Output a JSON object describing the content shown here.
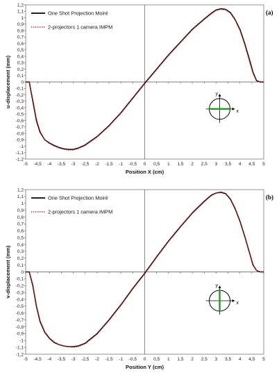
{
  "colors": {
    "series_solid": "#000000",
    "series_dotted": "#e0201b",
    "inset_line": "#1aa31a"
  },
  "chart_data": [
    {
      "type": "line",
      "panel_label": "(a)",
      "xlabel": "Position X (cm)",
      "ylabel": "u-displacement (mm)",
      "xlim": [
        -5,
        5
      ],
      "ylim": [
        -1.2,
        1.2
      ],
      "x_ticks": [
        "-5",
        "-4,5",
        "-4",
        "-3,5",
        "-3",
        "-2,5",
        "-2",
        "-1,5",
        "-1",
        "-0,5",
        "0",
        "0,5",
        "1",
        "1,5",
        "2",
        "2,5",
        "3",
        "3,5",
        "4",
        "4,5",
        "5"
      ],
      "y_ticks": [
        "1,2",
        "1,1",
        "1",
        "0,9",
        "0,8",
        "0,7",
        "0,6",
        "0,5",
        "0,4",
        "0,3",
        "0,2",
        "0,1",
        "0",
        "-0,1",
        "-0,2",
        "-0,3",
        "-0,4",
        "-0,5",
        "-0,6",
        "-0,7",
        "-0,8",
        "-0,9",
        "-1",
        "-1,1",
        "-1,2"
      ],
      "legend_position": "top-left",
      "inset_line": "horizontal",
      "inset_labels": {
        "x": "x",
        "y": "y"
      },
      "series": [
        {
          "name": "One Shot Projection Moiré",
          "style": "solid",
          "x": [
            -5.0,
            -4.85,
            -4.7,
            -4.55,
            -4.4,
            -4.2,
            -4.0,
            -3.8,
            -3.6,
            -3.4,
            -3.2,
            -3.0,
            -2.8,
            -2.5,
            -2.0,
            -1.5,
            -1.0,
            -0.5,
            0.0,
            0.5,
            1.0,
            1.5,
            2.0,
            2.5,
            2.8,
            3.0,
            3.2,
            3.4,
            3.6,
            3.8,
            4.0,
            4.2,
            4.4,
            4.55,
            4.7,
            4.85,
            5.0
          ],
          "y": [
            0.0,
            0.0,
            -0.3,
            -0.6,
            -0.78,
            -0.9,
            -0.95,
            -0.99,
            -1.02,
            -1.04,
            -1.05,
            -1.05,
            -1.03,
            -0.98,
            -0.85,
            -0.68,
            -0.48,
            -0.25,
            -0.02,
            0.2,
            0.42,
            0.62,
            0.82,
            0.98,
            1.07,
            1.12,
            1.14,
            1.13,
            1.08,
            0.97,
            0.82,
            0.6,
            0.35,
            0.15,
            0.02,
            0.0,
            0.0
          ]
        },
        {
          "name": "2-projectors 1 camera IMPM",
          "style": "dotted",
          "x": [
            -5.0,
            -4.85,
            -4.7,
            -4.55,
            -4.4,
            -4.2,
            -4.0,
            -3.8,
            -3.6,
            -3.4,
            -3.2,
            -3.0,
            -2.8,
            -2.5,
            -2.0,
            -1.5,
            -1.0,
            -0.5,
            0.0,
            0.5,
            1.0,
            1.5,
            2.0,
            2.5,
            2.8,
            3.0,
            3.2,
            3.4,
            3.6,
            3.8,
            4.0,
            4.2,
            4.4,
            4.55,
            4.7,
            4.85,
            5.0
          ],
          "y": [
            0.0,
            0.0,
            -0.27,
            -0.57,
            -0.76,
            -0.9,
            -0.96,
            -1.0,
            -1.03,
            -1.05,
            -1.06,
            -1.06,
            -1.04,
            -0.99,
            -0.86,
            -0.69,
            -0.49,
            -0.26,
            -0.03,
            0.19,
            0.41,
            0.61,
            0.81,
            0.97,
            1.06,
            1.11,
            1.13,
            1.12,
            1.07,
            0.96,
            0.8,
            0.58,
            0.32,
            0.13,
            0.01,
            0.0,
            0.0
          ]
        }
      ]
    },
    {
      "type": "line",
      "panel_label": "(b)",
      "xlabel": "Position Y (cm)",
      "ylabel": "v-displacement (mm)",
      "xlim": [
        -5,
        5
      ],
      "ylim": [
        -1.2,
        1.2
      ],
      "x_ticks": [
        "-5",
        "-4,5",
        "-4",
        "-3,5",
        "-3",
        "-2,5",
        "-2",
        "-1,5",
        "-1",
        "-0,5",
        "0",
        "0,5",
        "1",
        "1,5",
        "2",
        "2,5",
        "3",
        "3,5",
        "4",
        "4,5",
        "5"
      ],
      "y_ticks": [
        "1,2",
        "1,1",
        "1",
        "0,9",
        "0,8",
        "0,7",
        "0,6",
        "0,5",
        "0,4",
        "0,3",
        "0,2",
        "0,1",
        "0",
        "-0,1",
        "-0,2",
        "-0,3",
        "-0,4",
        "-0,5",
        "-0,6",
        "-0,7",
        "-0,8",
        "-0,9",
        "-1",
        "-1,1",
        "-1,2"
      ],
      "legend_position": "top-left",
      "inset_line": "vertical",
      "inset_labels": {
        "x": "x",
        "y": "y"
      },
      "series": [
        {
          "name": "One Shot Projection Moiré",
          "style": "solid",
          "x": [
            -5.0,
            -4.85,
            -4.7,
            -4.55,
            -4.4,
            -4.2,
            -4.0,
            -3.8,
            -3.6,
            -3.4,
            -3.2,
            -3.0,
            -2.8,
            -2.5,
            -2.0,
            -1.5,
            -1.0,
            -0.5,
            0.0,
            0.5,
            1.0,
            1.5,
            2.0,
            2.5,
            2.8,
            3.0,
            3.2,
            3.4,
            3.6,
            3.8,
            4.0,
            4.2,
            4.4,
            4.55,
            4.7,
            4.85,
            5.0
          ],
          "y": [
            0.0,
            0.0,
            -0.2,
            -0.5,
            -0.72,
            -0.88,
            -0.97,
            -1.03,
            -1.06,
            -1.08,
            -1.09,
            -1.09,
            -1.08,
            -1.04,
            -0.9,
            -0.7,
            -0.48,
            -0.24,
            -0.02,
            0.22,
            0.45,
            0.66,
            0.86,
            1.03,
            1.12,
            1.15,
            1.16,
            1.14,
            1.06,
            0.92,
            0.74,
            0.52,
            0.28,
            0.1,
            0.02,
            0.0,
            0.0
          ]
        },
        {
          "name": "2-projectors 1 camera IMPM",
          "style": "dotted",
          "x": [
            -5.0,
            -4.85,
            -4.7,
            -4.55,
            -4.4,
            -4.2,
            -4.0,
            -3.8,
            -3.6,
            -3.4,
            -3.2,
            -3.0,
            -2.8,
            -2.5,
            -2.0,
            -1.5,
            -1.0,
            -0.5,
            0.0,
            0.5,
            1.0,
            1.5,
            2.0,
            2.5,
            2.8,
            3.0,
            3.2,
            3.4,
            3.6,
            3.8,
            4.0,
            4.2,
            4.4,
            4.55,
            4.7,
            4.85,
            5.0
          ],
          "y": [
            0.0,
            0.0,
            -0.18,
            -0.48,
            -0.7,
            -0.87,
            -0.96,
            -1.02,
            -1.06,
            -1.08,
            -1.09,
            -1.1,
            -1.09,
            -1.05,
            -0.91,
            -0.71,
            -0.49,
            -0.25,
            -0.03,
            0.21,
            0.44,
            0.65,
            0.85,
            1.02,
            1.11,
            1.15,
            1.17,
            1.15,
            1.07,
            0.93,
            0.75,
            0.53,
            0.29,
            0.11,
            0.02,
            0.0,
            0.0
          ]
        }
      ]
    }
  ]
}
